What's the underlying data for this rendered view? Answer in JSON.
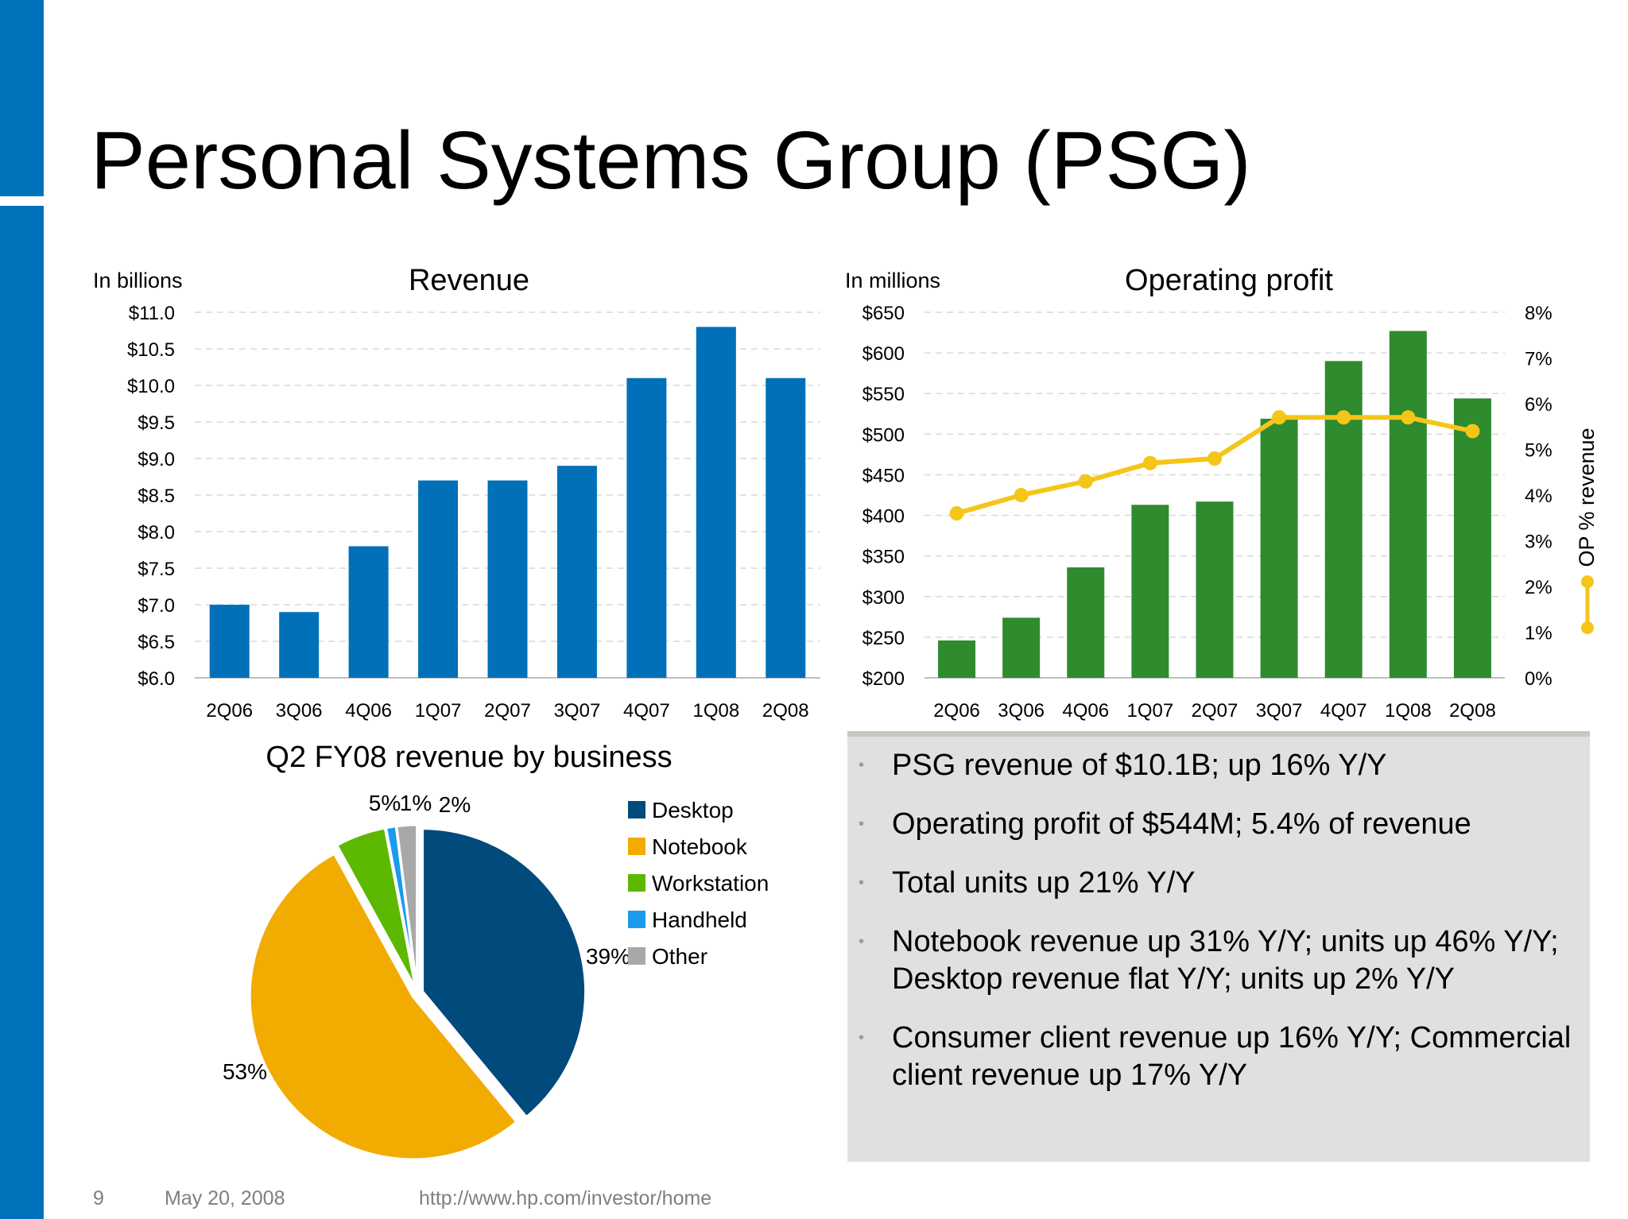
{
  "slide": {
    "title": "Personal Systems Group (PSG)",
    "accent_color": "#0072bc",
    "footer": {
      "page_number": "9",
      "date": "May 20, 2008",
      "url": "http://www.hp.com/investor/home"
    }
  },
  "bullets": [
    "PSG revenue of $10.1B; up 16% Y/Y",
    "Operating profit of $544M; 5.4% of revenue",
    "Total units up 21% Y/Y",
    "Notebook revenue up 31% Y/Y; units up 46% Y/Y; Desktop revenue flat Y/Y; units up 2% Y/Y",
    "Consumer client revenue up 16% Y/Y; Commercial client revenue up 17% Y/Y"
  ],
  "chart_data": [
    {
      "type": "bar",
      "title": "Revenue",
      "unit_label": "In billions",
      "categories": [
        "2Q06",
        "3Q06",
        "4Q06",
        "1Q07",
        "2Q07",
        "3Q07",
        "4Q07",
        "1Q08",
        "2Q08"
      ],
      "values": [
        7.0,
        6.9,
        7.8,
        8.7,
        8.7,
        8.9,
        10.1,
        10.8,
        10.1
      ],
      "ylim": [
        6.0,
        11.0
      ],
      "yticks": [
        "$6.0",
        "$6.5",
        "$7.0",
        "$7.5",
        "$8.0",
        "$8.5",
        "$9.0",
        "$9.5",
        "$10.0",
        "$10.5",
        "$11.0"
      ],
      "color": "#0070b8",
      "grid": true
    },
    {
      "type": "bar",
      "title": "Operating profit",
      "unit_label": "In millions",
      "categories": [
        "2Q06",
        "3Q06",
        "4Q06",
        "1Q07",
        "2Q07",
        "3Q07",
        "4Q07",
        "1Q08",
        "2Q08"
      ],
      "series": [
        {
          "name": "",
          "type": "bar",
          "axis": "left",
          "color": "#2e8b2e",
          "values": [
            246,
            274,
            336,
            413,
            417,
            519,
            590,
            627,
            544
          ]
        },
        {
          "name": "OP % revenue",
          "type": "line",
          "axis": "right",
          "color": "#f5c518",
          "values": [
            3.6,
            4.0,
            4.3,
            4.7,
            4.8,
            5.7,
            5.7,
            5.7,
            5.4
          ]
        }
      ],
      "ylim": [
        200,
        650
      ],
      "yticks": [
        "$200",
        "$250",
        "$300",
        "$350",
        "$400",
        "$450",
        "$500",
        "$550",
        "$600",
        "$650"
      ],
      "y2lim": [
        0,
        8
      ],
      "y2ticks": [
        "0%",
        "1%",
        "2%",
        "3%",
        "4%",
        "5%",
        "6%",
        "7%",
        "8%"
      ],
      "y2label": "OP % revenue",
      "grid": true
    },
    {
      "type": "pie",
      "title": "Q2 FY08 revenue by business",
      "legend_position": "right",
      "slices": [
        {
          "name": "Desktop",
          "value": 39,
          "label": "39%",
          "color": "#004a7c"
        },
        {
          "name": "Notebook",
          "value": 53,
          "label": "53%",
          "color": "#f2ab00"
        },
        {
          "name": "Workstation",
          "value": 5,
          "label": "5%",
          "color": "#5cb800"
        },
        {
          "name": "Handheld",
          "value": 1,
          "label": "1%",
          "color": "#1a9bec"
        },
        {
          "name": "Other",
          "value": 2,
          "label": "2%",
          "color": "#a8a8a8"
        }
      ]
    }
  ]
}
